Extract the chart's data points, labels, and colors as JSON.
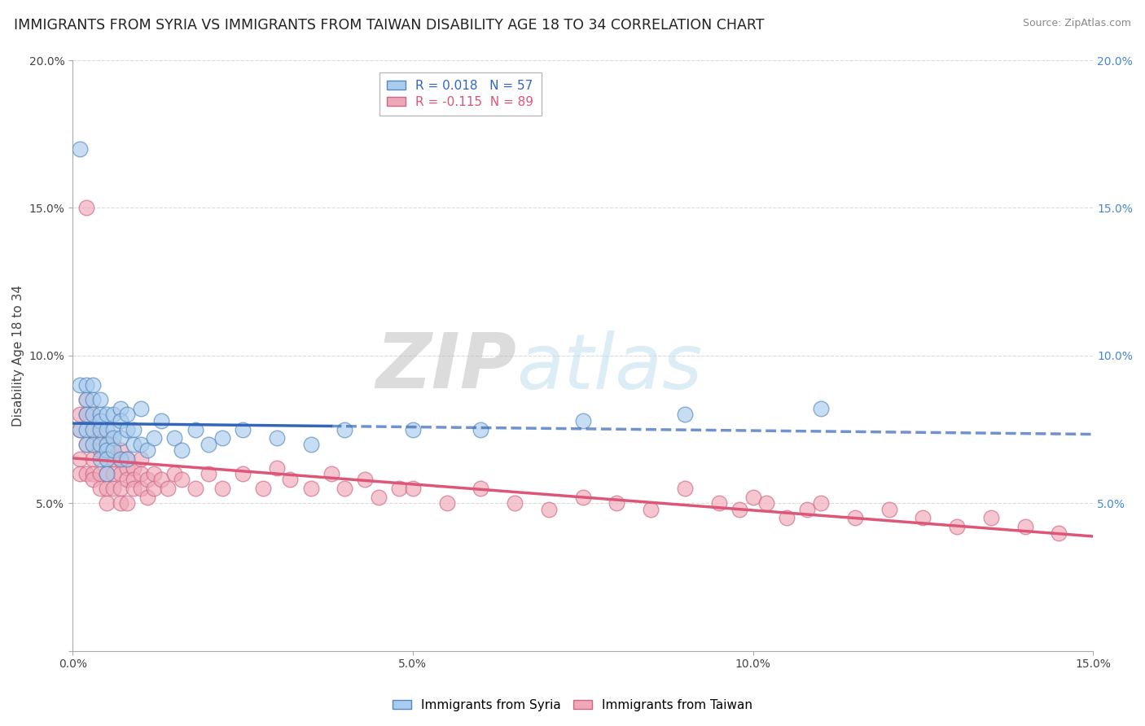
{
  "title": "IMMIGRANTS FROM SYRIA VS IMMIGRANTS FROM TAIWAN DISABILITY AGE 18 TO 34 CORRELATION CHART",
  "source": "Source: ZipAtlas.com",
  "ylabel": "Disability Age 18 to 34",
  "xlim": [
    0.0,
    0.15
  ],
  "ylim": [
    0.0,
    0.2
  ],
  "xticks": [
    0.0,
    0.05,
    0.1,
    0.15
  ],
  "xtick_labels": [
    "0.0%",
    "5.0%",
    "10.0%",
    "15.0%"
  ],
  "yticks": [
    0.0,
    0.05,
    0.1,
    0.15,
    0.2
  ],
  "ytick_labels": [
    "",
    "5.0%",
    "10.0%",
    "15.0%",
    "20.0%"
  ],
  "syria_r": 0.018,
  "syria_n": 57,
  "taiwan_r": -0.115,
  "taiwan_n": 89,
  "syria_color": "#aaccee",
  "syria_edge": "#5588bb",
  "taiwan_color": "#f0a8b8",
  "taiwan_edge": "#cc6688",
  "syria_line_color": "#3366bb",
  "taiwan_line_color": "#dd5577",
  "watermark": "ZIPatlas",
  "watermark_color": "#cccccc",
  "background_color": "#ffffff",
  "grid_color": "#cccccc",
  "title_fontsize": 12.5,
  "axis_label_fontsize": 11,
  "tick_fontsize": 10,
  "legend_fontsize": 11,
  "syria_x": [
    0.001,
    0.001,
    0.001,
    0.002,
    0.002,
    0.002,
    0.002,
    0.002,
    0.003,
    0.003,
    0.003,
    0.003,
    0.003,
    0.004,
    0.004,
    0.004,
    0.004,
    0.004,
    0.004,
    0.005,
    0.005,
    0.005,
    0.005,
    0.005,
    0.005,
    0.006,
    0.006,
    0.006,
    0.006,
    0.007,
    0.007,
    0.007,
    0.007,
    0.008,
    0.008,
    0.008,
    0.009,
    0.009,
    0.01,
    0.01,
    0.011,
    0.012,
    0.013,
    0.015,
    0.016,
    0.018,
    0.02,
    0.022,
    0.025,
    0.03,
    0.035,
    0.04,
    0.05,
    0.06,
    0.075,
    0.09,
    0.11
  ],
  "syria_y": [
    0.17,
    0.09,
    0.075,
    0.09,
    0.085,
    0.08,
    0.075,
    0.07,
    0.09,
    0.085,
    0.08,
    0.075,
    0.07,
    0.085,
    0.08,
    0.078,
    0.075,
    0.07,
    0.065,
    0.08,
    0.075,
    0.07,
    0.068,
    0.065,
    0.06,
    0.08,
    0.075,
    0.072,
    0.068,
    0.082,
    0.078,
    0.072,
    0.065,
    0.08,
    0.075,
    0.065,
    0.075,
    0.07,
    0.082,
    0.07,
    0.068,
    0.072,
    0.078,
    0.072,
    0.068,
    0.075,
    0.07,
    0.072,
    0.075,
    0.072,
    0.07,
    0.075,
    0.075,
    0.075,
    0.078,
    0.08,
    0.082
  ],
  "taiwan_x": [
    0.001,
    0.001,
    0.001,
    0.001,
    0.002,
    0.002,
    0.002,
    0.002,
    0.002,
    0.003,
    0.003,
    0.003,
    0.003,
    0.003,
    0.003,
    0.004,
    0.004,
    0.004,
    0.004,
    0.004,
    0.005,
    0.005,
    0.005,
    0.005,
    0.005,
    0.005,
    0.006,
    0.006,
    0.006,
    0.006,
    0.007,
    0.007,
    0.007,
    0.007,
    0.007,
    0.008,
    0.008,
    0.008,
    0.008,
    0.009,
    0.009,
    0.009,
    0.01,
    0.01,
    0.01,
    0.011,
    0.011,
    0.012,
    0.012,
    0.013,
    0.014,
    0.015,
    0.016,
    0.018,
    0.02,
    0.022,
    0.025,
    0.028,
    0.03,
    0.032,
    0.035,
    0.038,
    0.04,
    0.043,
    0.045,
    0.048,
    0.05,
    0.055,
    0.06,
    0.065,
    0.07,
    0.075,
    0.08,
    0.085,
    0.09,
    0.095,
    0.098,
    0.1,
    0.102,
    0.105,
    0.108,
    0.11,
    0.115,
    0.12,
    0.125,
    0.13,
    0.135,
    0.14,
    0.145
  ],
  "taiwan_y": [
    0.08,
    0.075,
    0.065,
    0.06,
    0.15,
    0.085,
    0.08,
    0.07,
    0.06,
    0.08,
    0.075,
    0.07,
    0.065,
    0.06,
    0.058,
    0.075,
    0.072,
    0.068,
    0.06,
    0.055,
    0.07,
    0.068,
    0.065,
    0.06,
    0.055,
    0.05,
    0.07,
    0.065,
    0.06,
    0.055,
    0.068,
    0.065,
    0.06,
    0.055,
    0.05,
    0.065,
    0.062,
    0.058,
    0.05,
    0.062,
    0.058,
    0.055,
    0.065,
    0.06,
    0.055,
    0.058,
    0.052,
    0.06,
    0.055,
    0.058,
    0.055,
    0.06,
    0.058,
    0.055,
    0.06,
    0.055,
    0.06,
    0.055,
    0.062,
    0.058,
    0.055,
    0.06,
    0.055,
    0.058,
    0.052,
    0.055,
    0.055,
    0.05,
    0.055,
    0.05,
    0.048,
    0.052,
    0.05,
    0.048,
    0.055,
    0.05,
    0.048,
    0.052,
    0.05,
    0.045,
    0.048,
    0.05,
    0.045,
    0.048,
    0.045,
    0.042,
    0.045,
    0.042,
    0.04
  ]
}
